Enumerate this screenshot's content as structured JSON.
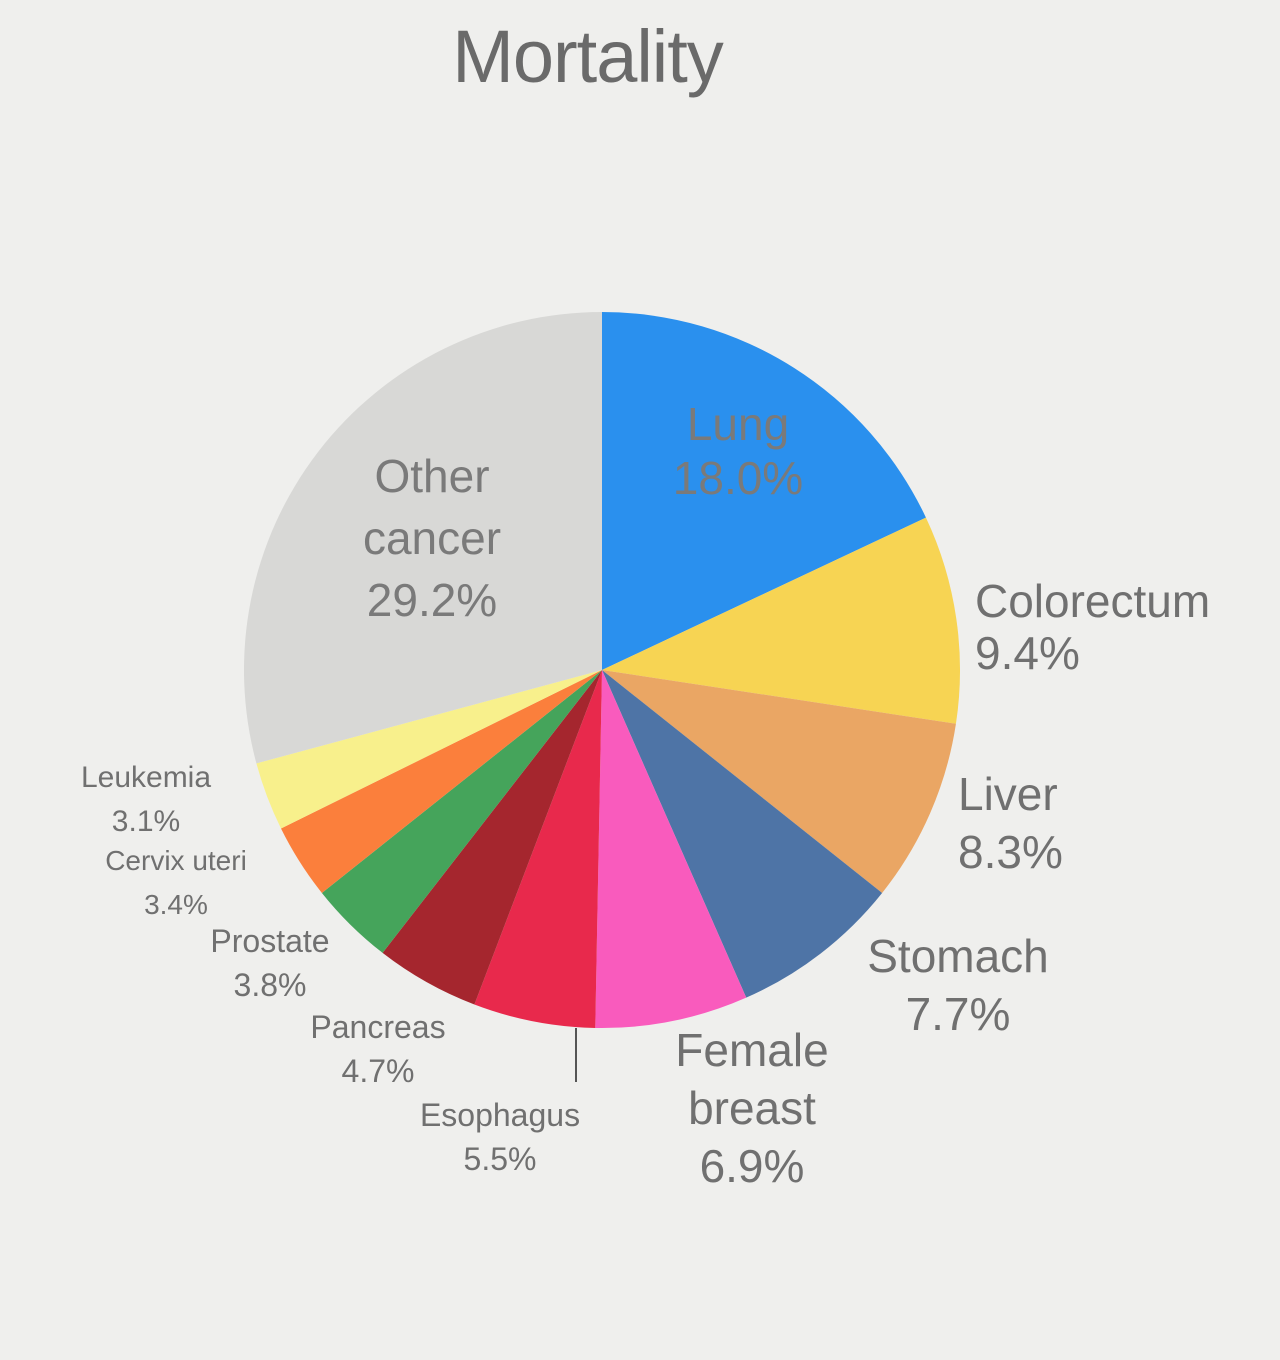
{
  "chart_data": {
    "type": "pie",
    "title": "Mortality",
    "slices": [
      {
        "name": "Lung",
        "value": 18.0,
        "label": "18.0%",
        "color": "#2a90ee"
      },
      {
        "name": "Colorectum",
        "value": 9.4,
        "label": "9.4%",
        "color": "#f7d453"
      },
      {
        "name": "Liver",
        "value": 8.3,
        "label": "8.3%",
        "color": "#eaa664"
      },
      {
        "name": "Stomach",
        "value": 7.7,
        "label": "7.7%",
        "color": "#4e74a6"
      },
      {
        "name": "Female breast",
        "value": 6.9,
        "label": "6.9%",
        "color": "#f95bbd"
      },
      {
        "name": "Esophagus",
        "value": 5.5,
        "label": "5.5%",
        "color": "#e8294c"
      },
      {
        "name": "Pancreas",
        "value": 4.7,
        "label": "4.7%",
        "color": "#a5262e"
      },
      {
        "name": "Prostate",
        "value": 3.8,
        "label": "3.8%",
        "color": "#45a45b"
      },
      {
        "name": "Cervix uteri",
        "value": 3.4,
        "label": "3.4%",
        "color": "#fb7f3c"
      },
      {
        "name": "Leukemia",
        "value": 3.1,
        "label": "3.1%",
        "color": "#f8f08c"
      },
      {
        "name": "Other cancer",
        "value": 29.2,
        "label": "29.2%",
        "color": "#d8d8d6"
      }
    ]
  }
}
